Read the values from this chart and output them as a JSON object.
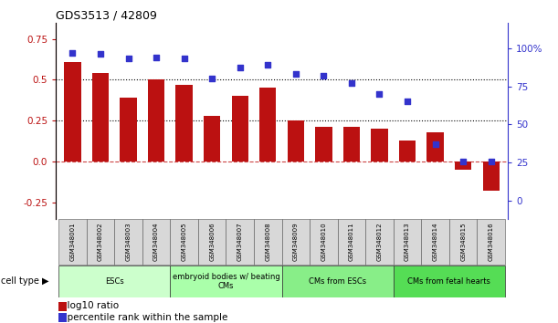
{
  "title": "GDS3513 / 42809",
  "samples": [
    "GSM348001",
    "GSM348002",
    "GSM348003",
    "GSM348004",
    "GSM348005",
    "GSM348006",
    "GSM348007",
    "GSM348008",
    "GSM348009",
    "GSM348010",
    "GSM348011",
    "GSM348012",
    "GSM348013",
    "GSM348014",
    "GSM348015",
    "GSM348016"
  ],
  "log10_ratio": [
    0.61,
    0.54,
    0.39,
    0.5,
    0.47,
    0.28,
    0.4,
    0.45,
    0.25,
    0.21,
    0.21,
    0.2,
    0.13,
    0.18,
    -0.05,
    -0.18
  ],
  "percentile_rank": [
    97,
    96,
    93,
    94,
    93,
    80,
    87,
    89,
    83,
    82,
    77,
    70,
    65,
    37,
    26,
    26
  ],
  "bar_color": "#bb1111",
  "dot_color": "#3333cc",
  "zero_line_color": "#cc4444",
  "dotted_line_color": "#000000",
  "left_ylim": [
    -0.35,
    0.85
  ],
  "left_yticks": [
    -0.25,
    0.0,
    0.25,
    0.5,
    0.75
  ],
  "right_ylim": [
    -11.67,
    116.67
  ],
  "right_yticks": [
    0,
    25,
    50,
    75,
    100
  ],
  "right_yticklabels": [
    "0",
    "25",
    "50",
    "75",
    "100%"
  ],
  "cell_type_groups": [
    {
      "label": "ESCs",
      "start": 0,
      "end": 3,
      "color": "#ccffcc"
    },
    {
      "label": "embryoid bodies w/ beating\nCMs",
      "start": 4,
      "end": 7,
      "color": "#aaffaa"
    },
    {
      "label": "CMs from ESCs",
      "start": 8,
      "end": 11,
      "color": "#88ee88"
    },
    {
      "label": "CMs from fetal hearts",
      "start": 12,
      "end": 15,
      "color": "#55dd55"
    }
  ],
  "cell_type_label": "cell type",
  "legend_bar_label": "log10 ratio",
  "legend_dot_label": "percentile rank within the sample",
  "hline_values": [
    0.25,
    0.5
  ],
  "background_color": "#ffffff"
}
